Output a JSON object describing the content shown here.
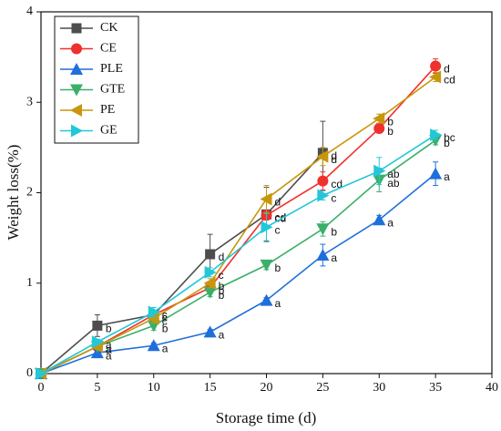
{
  "chart_data": {
    "type": "line",
    "xlabel": "Storage time (d)",
    "ylabel": "Weight loss(%)",
    "xlim": [
      0,
      40
    ],
    "xticks": [
      0,
      5,
      10,
      15,
      20,
      25,
      30,
      35,
      40
    ],
    "ylim": [
      0,
      4
    ],
    "yticks": [
      0,
      1,
      2,
      3,
      4
    ],
    "legend": "upper left",
    "series": [
      {
        "name": "CK",
        "color": "#4d4d4d",
        "marker": "square",
        "x": [
          0,
          5,
          10,
          15,
          20,
          25
        ],
        "values": [
          0,
          0.53,
          0.65,
          1.32,
          1.76,
          2.44
        ],
        "errors": [
          0,
          0.12,
          0.05,
          0.22,
          0.3,
          0.35
        ],
        "letters": [
          null,
          "b",
          "c",
          "d",
          "cd",
          "d"
        ]
      },
      {
        "name": "CE",
        "color": "#f0302c",
        "marker": "circle",
        "x": [
          0,
          5,
          10,
          15,
          20,
          25,
          30,
          35
        ],
        "values": [
          0,
          0.3,
          0.65,
          0.95,
          1.75,
          2.13,
          2.71,
          3.4
        ],
        "errors": [
          0,
          0.03,
          0.05,
          0.05,
          0.05,
          0.1,
          0.05,
          0.08
        ],
        "letters": [
          null,
          "a",
          "c",
          "b",
          "cd",
          "cd",
          "b",
          "d"
        ]
      },
      {
        "name": "PLE",
        "color": "#1f6fdb",
        "marker": "triangle-up",
        "x": [
          0,
          5,
          10,
          15,
          20,
          25,
          30,
          35
        ],
        "values": [
          0,
          0.23,
          0.31,
          0.46,
          0.81,
          1.31,
          1.7,
          2.21
        ],
        "errors": [
          0,
          0.03,
          0.03,
          0.03,
          0.03,
          0.12,
          0.05,
          0.13
        ],
        "letters": [
          null,
          "a",
          "a",
          "a",
          "a",
          "a",
          "a",
          "a"
        ]
      },
      {
        "name": "GTE",
        "color": "#3aaf6a",
        "marker": "triangle-down",
        "x": [
          0,
          5,
          10,
          15,
          20,
          25,
          30,
          35
        ],
        "values": [
          0,
          0.3,
          0.53,
          0.9,
          1.2,
          1.6,
          2.14,
          2.58
        ],
        "errors": [
          0,
          0.03,
          0.05,
          0.05,
          0.05,
          0.08,
          0.13,
          0.05
        ],
        "letters": [
          null,
          "a",
          "b",
          "b",
          "b",
          "b",
          "ab",
          "b"
        ]
      },
      {
        "name": "PE",
        "color": "#c8960c",
        "marker": "triangle-left",
        "x": [
          0,
          5,
          10,
          15,
          20,
          25,
          30,
          35
        ],
        "values": [
          0,
          0.3,
          0.61,
          1.0,
          1.93,
          2.4,
          2.82,
          3.28
        ],
        "errors": [
          0,
          0.03,
          0.05,
          0.05,
          0.15,
          0.1,
          0.05,
          0.05
        ],
        "letters": [
          null,
          "a",
          "c",
          "b",
          "d",
          "d",
          "b",
          "cd"
        ]
      },
      {
        "name": "GE",
        "color": "#22c7d8",
        "marker": "triangle-right",
        "x": [
          0,
          5,
          10,
          15,
          20,
          25,
          30,
          35
        ],
        "values": [
          0,
          0.35,
          0.68,
          1.12,
          1.62,
          1.97,
          2.24,
          2.64
        ],
        "errors": [
          0,
          0.03,
          0.05,
          0.05,
          0.15,
          0.05,
          0.15,
          0.05
        ],
        "letters": [
          null,
          "a",
          "c",
          "c",
          "c",
          "c",
          "ab",
          "bc"
        ]
      }
    ]
  }
}
